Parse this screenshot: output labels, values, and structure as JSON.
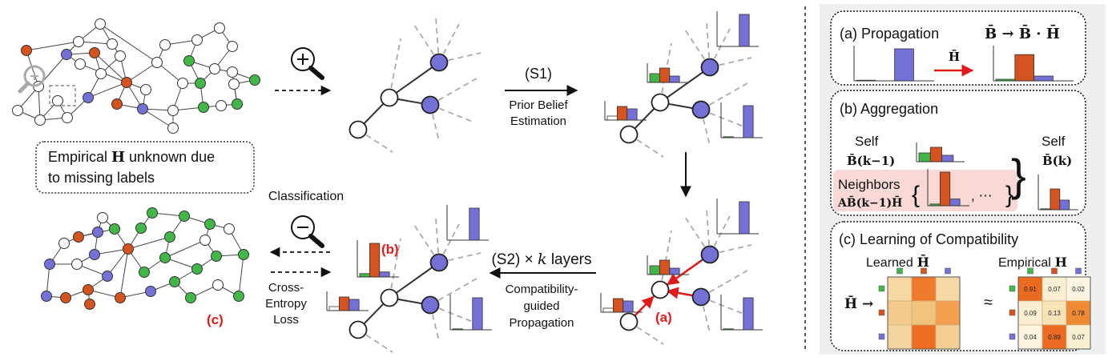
{
  "colors": {
    "orange": "#d4531f",
    "blue": "#7370d6",
    "green": "#43b649",
    "white_node": "#ffffff",
    "accent_red": "#e01b1b",
    "panel_bg": "#eef0f0",
    "neighbors_bg": "#f8d9d6"
  },
  "left": {
    "empirical_note": "Empirical H unknown due to missing labels",
    "empirical_line1_prefix": "Empirical ",
    "empirical_line1_bold": "H",
    "empirical_line1_suffix": " unknown due",
    "empirical_line2": "to missing labels",
    "classification": "Classification",
    "cross_entropy_line1": "Cross-",
    "cross_entropy_line2": "Entropy",
    "cross_entropy_line3": "Loss",
    "label_c": "(c)"
  },
  "center": {
    "s1": "(S1)",
    "prior_line1": "Prior Belief",
    "prior_line2": "Estimation",
    "s2_prefix": "(S2) × ",
    "s2_k": "k",
    "s2_suffix": " layers",
    "compat_line1": "Compatibility-",
    "compat_line2": "guided",
    "compat_line3": "Propagation",
    "label_b": "(b)",
    "label_a": "(a)"
  },
  "panels": {
    "propagation": {
      "title": "(a) Propagation",
      "formula": "B̄ → B̄ · H̄",
      "arrow_label": "H̄"
    },
    "aggregation": {
      "title": "(b) Aggregation",
      "self_left": "Self",
      "self_left_formula": "B̄(k−1)",
      "self_right": "Self",
      "self_right_formula": "B̄(k)",
      "neighbors": "Neighbors",
      "neighbors_formula": "AB̄(k−1)H̄",
      "ellipsis": ", ⋯"
    },
    "compatibility": {
      "title": "(c) Learning of Compatibility",
      "learned": "Learned",
      "learned_symbol": "H̄",
      "empirical": "Empirical",
      "empirical_symbol": "H",
      "h_arrow": "H̄ →",
      "approx": "≈",
      "learned_matrix": [
        [
          "#f7d7a4",
          "#ef7a2c",
          "#f4d9a6"
        ],
        [
          "#f3c98c",
          "#f1c47e",
          "#f29f50"
        ],
        [
          "#f4d4a0",
          "#ee6d22",
          "#f3cf93"
        ]
      ],
      "empirical_matrix": [
        [
          "0.91",
          "0.07",
          "0.02"
        ],
        [
          "0.09",
          "0.13",
          "0.78"
        ],
        [
          "0.04",
          "0.89",
          "0.07"
        ]
      ],
      "empirical_colors": [
        [
          "#ea6b1f",
          "#fbefd3",
          "#fdf5e2"
        ],
        [
          "#fbefd3",
          "#f8e3b9",
          "#ef8a34"
        ],
        [
          "#fdf5e2",
          "#eb6c22",
          "#fbefd3"
        ]
      ]
    }
  }
}
